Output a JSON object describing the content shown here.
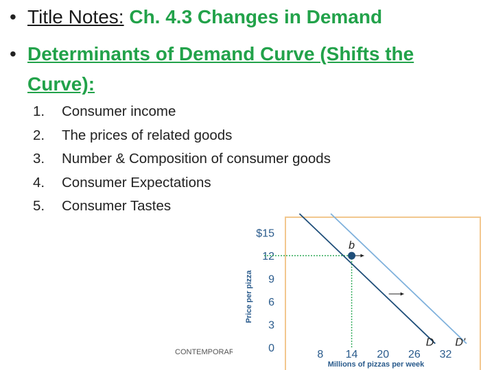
{
  "slide": {
    "title_prefix": "Title Notes:",
    "title_text": "Ch. 4.3 Changes in Demand",
    "heading_line1": "Determinants of Demand Curve (Shifts the",
    "heading_line2": "Curve):",
    "list": [
      {
        "num": "1.",
        "text": "Consumer income"
      },
      {
        "num": "2.",
        "text": "The prices of related goods"
      },
      {
        "num": "3.",
        "text": "Number & Composition of consumer goods"
      },
      {
        "num": "4.",
        "text": "Consumer Expectations"
      },
      {
        "num": "5.",
        "text": "Consumer Tastes"
      }
    ],
    "footer": "CONTEMPORARY"
  },
  "chart_data": {
    "type": "line",
    "ylabel": "Price per pizza",
    "xlabel": "Millions of pizzas per week",
    "y_ticks": [
      "$15",
      "12",
      "9",
      "6",
      "3",
      "0"
    ],
    "y_tick_values": [
      15,
      12,
      9,
      6,
      3,
      0
    ],
    "x_ticks": [
      "8",
      "14",
      "20",
      "26",
      "32"
    ],
    "x_tick_values": [
      8,
      14,
      20,
      26,
      32
    ],
    "xlim": [
      0,
      36
    ],
    "ylim": [
      0,
      16.5
    ],
    "series": [
      {
        "name": "D",
        "x": [
          4,
          30
        ],
        "y": [
          17.5,
          0.5
        ]
      },
      {
        "name": "D'",
        "x": [
          10,
          36
        ],
        "y": [
          17.5,
          0.5
        ]
      }
    ],
    "point": {
      "label": "b",
      "x": 14,
      "y": 12
    },
    "colors": {
      "curve_d": "#1f4e79",
      "curve_d_prime": "#7fb1dc",
      "point": "#1f4e79",
      "guide": "#2eaa57",
      "frame": "#f2c78e",
      "text": "#2a5b8c"
    }
  }
}
